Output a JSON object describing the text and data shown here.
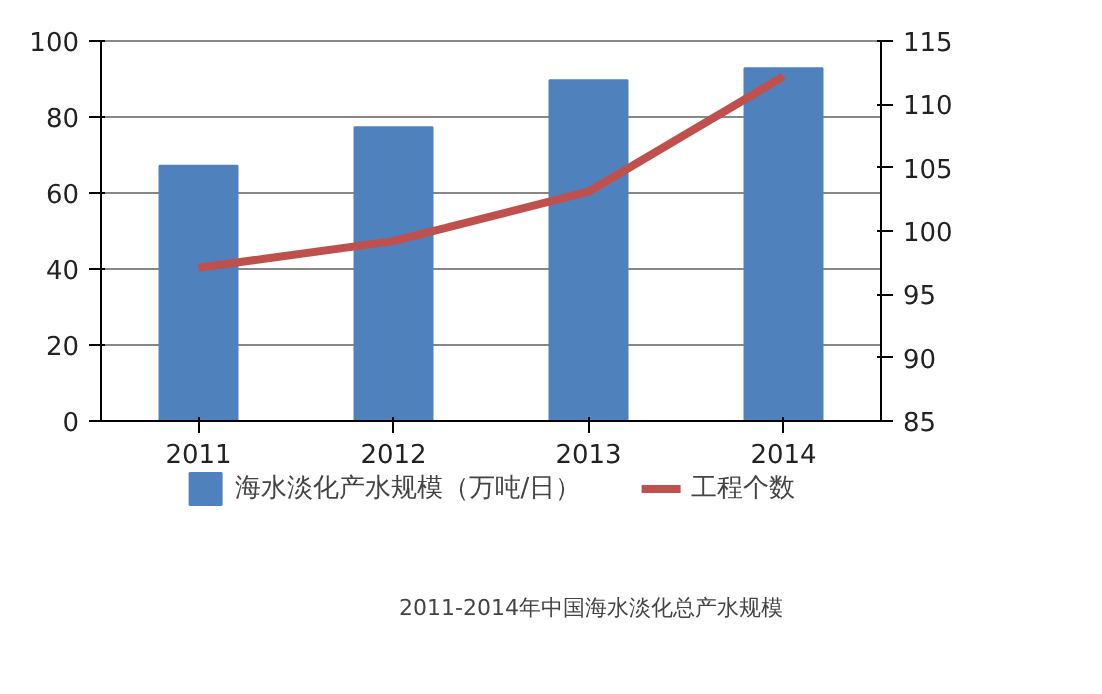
{
  "chart_data": {
    "type": "bar",
    "title": "2011-2014年中国海水淡化总产水规模",
    "categories": [
      "2011",
      "2012",
      "2013",
      "2014"
    ],
    "series": [
      {
        "name": "海水淡化产水规模（万吨/日）",
        "color": "#4f81bd",
        "values": [
          67.2,
          77.3,
          89.7,
          92.8
        ]
      },
      {
        "name": "工程个数",
        "color": "#c0504d",
        "type": "line",
        "axis": "y2",
        "values": [
          97.1,
          99.2,
          103.1,
          112.2
        ]
      }
    ],
    "ylim": [
      0,
      100
    ],
    "yticks": [
      0,
      20,
      40,
      60,
      80,
      100
    ],
    "y2lim": [
      85,
      115
    ],
    "y2ticks": [
      85,
      90,
      95,
      100,
      105,
      110,
      115
    ],
    "grid": "y",
    "legend": "bottom"
  }
}
